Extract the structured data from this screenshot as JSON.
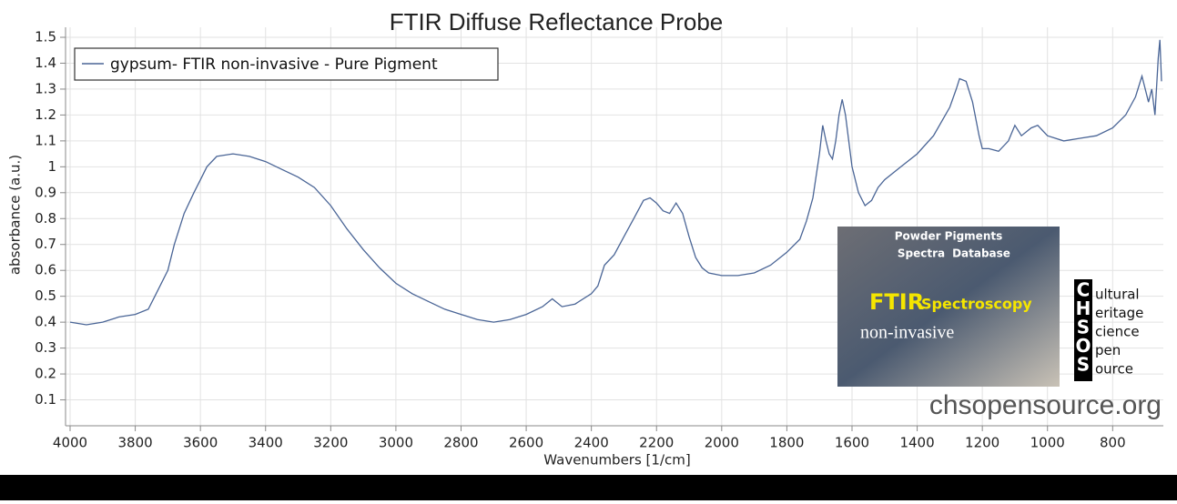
{
  "chart_data": {
    "type": "line",
    "title": "FTIR Diffuse Reflectance Probe",
    "x_label": "Wavenumbers [1/cm]",
    "y_label": "absorbance (a.u.)",
    "xlim": [
      4000,
      650
    ],
    "xticks": [
      4000,
      3800,
      3600,
      3400,
      3200,
      3000,
      2800,
      2600,
      2400,
      2200,
      2000,
      1800,
      1600,
      1400,
      1200,
      1000,
      800
    ],
    "ylim": [
      0,
      1.5
    ],
    "yticks": [
      0.1,
      0.2,
      0.3,
      0.4,
      0.5,
      0.6,
      0.7,
      0.8,
      0.9,
      1,
      1.1,
      1.2,
      1.3,
      1.4,
      1.5
    ],
    "grid": true,
    "legend": "top-left",
    "x": [
      4000,
      3950,
      3900,
      3850,
      3800,
      3760,
      3740,
      3700,
      3680,
      3650,
      3620,
      3600,
      3580,
      3550,
      3500,
      3450,
      3400,
      3350,
      3300,
      3250,
      3200,
      3150,
      3100,
      3050,
      3000,
      2950,
      2900,
      2850,
      2800,
      2750,
      2700,
      2650,
      2600,
      2550,
      2520,
      2490,
      2450,
      2400,
      2380,
      2360,
      2330,
      2300,
      2270,
      2240,
      2220,
      2200,
      2180,
      2160,
      2140,
      2120,
      2100,
      2080,
      2060,
      2040,
      2000,
      1950,
      1900,
      1850,
      1800,
      1760,
      1740,
      1720,
      1700,
      1690,
      1680,
      1670,
      1660,
      1650,
      1640,
      1630,
      1620,
      1600,
      1580,
      1560,
      1540,
      1520,
      1500,
      1450,
      1400,
      1350,
      1300,
      1280,
      1270,
      1250,
      1230,
      1210,
      1200,
      1180,
      1150,
      1120,
      1100,
      1080,
      1050,
      1030,
      1000,
      950,
      900,
      850,
      800,
      760,
      730,
      710,
      700,
      690,
      680,
      670,
      660,
      655,
      650
    ],
    "series": [
      {
        "name": "gypsum- FTIR non-invasive - Pure Pigment",
        "color": "#4a6596",
        "values": [
          0.4,
          0.39,
          0.4,
          0.42,
          0.43,
          0.45,
          0.5,
          0.6,
          0.7,
          0.82,
          0.9,
          0.95,
          1.0,
          1.04,
          1.05,
          1.04,
          1.02,
          0.99,
          0.96,
          0.92,
          0.85,
          0.76,
          0.68,
          0.61,
          0.55,
          0.51,
          0.48,
          0.45,
          0.43,
          0.41,
          0.4,
          0.41,
          0.43,
          0.46,
          0.49,
          0.46,
          0.47,
          0.51,
          0.54,
          0.62,
          0.66,
          0.73,
          0.8,
          0.87,
          0.88,
          0.86,
          0.83,
          0.82,
          0.86,
          0.82,
          0.73,
          0.65,
          0.61,
          0.59,
          0.58,
          0.58,
          0.59,
          0.62,
          0.67,
          0.72,
          0.79,
          0.88,
          1.05,
          1.16,
          1.1,
          1.05,
          1.03,
          1.1,
          1.2,
          1.26,
          1.2,
          1.0,
          0.9,
          0.85,
          0.87,
          0.92,
          0.95,
          1.0,
          1.05,
          1.12,
          1.23,
          1.3,
          1.34,
          1.33,
          1.25,
          1.12,
          1.07,
          1.07,
          1.06,
          1.1,
          1.16,
          1.12,
          1.15,
          1.16,
          1.12,
          1.1,
          1.11,
          1.12,
          1.15,
          1.2,
          1.27,
          1.35,
          1.3,
          1.25,
          1.3,
          1.2,
          1.42,
          1.49,
          1.33
        ]
      }
    ],
    "inset": {
      "lines": [
        "Powder Pigments",
        "Spectra",
        "Database",
        "FTIR",
        "Spectroscopy",
        "non-invasive"
      ]
    },
    "logo": {
      "letters": [
        "C",
        "H",
        "S",
        "O",
        "S"
      ],
      "words": [
        "ultural",
        "eritage",
        "cience",
        "pen",
        "ource"
      ]
    },
    "website": "chsopensource.org"
  }
}
